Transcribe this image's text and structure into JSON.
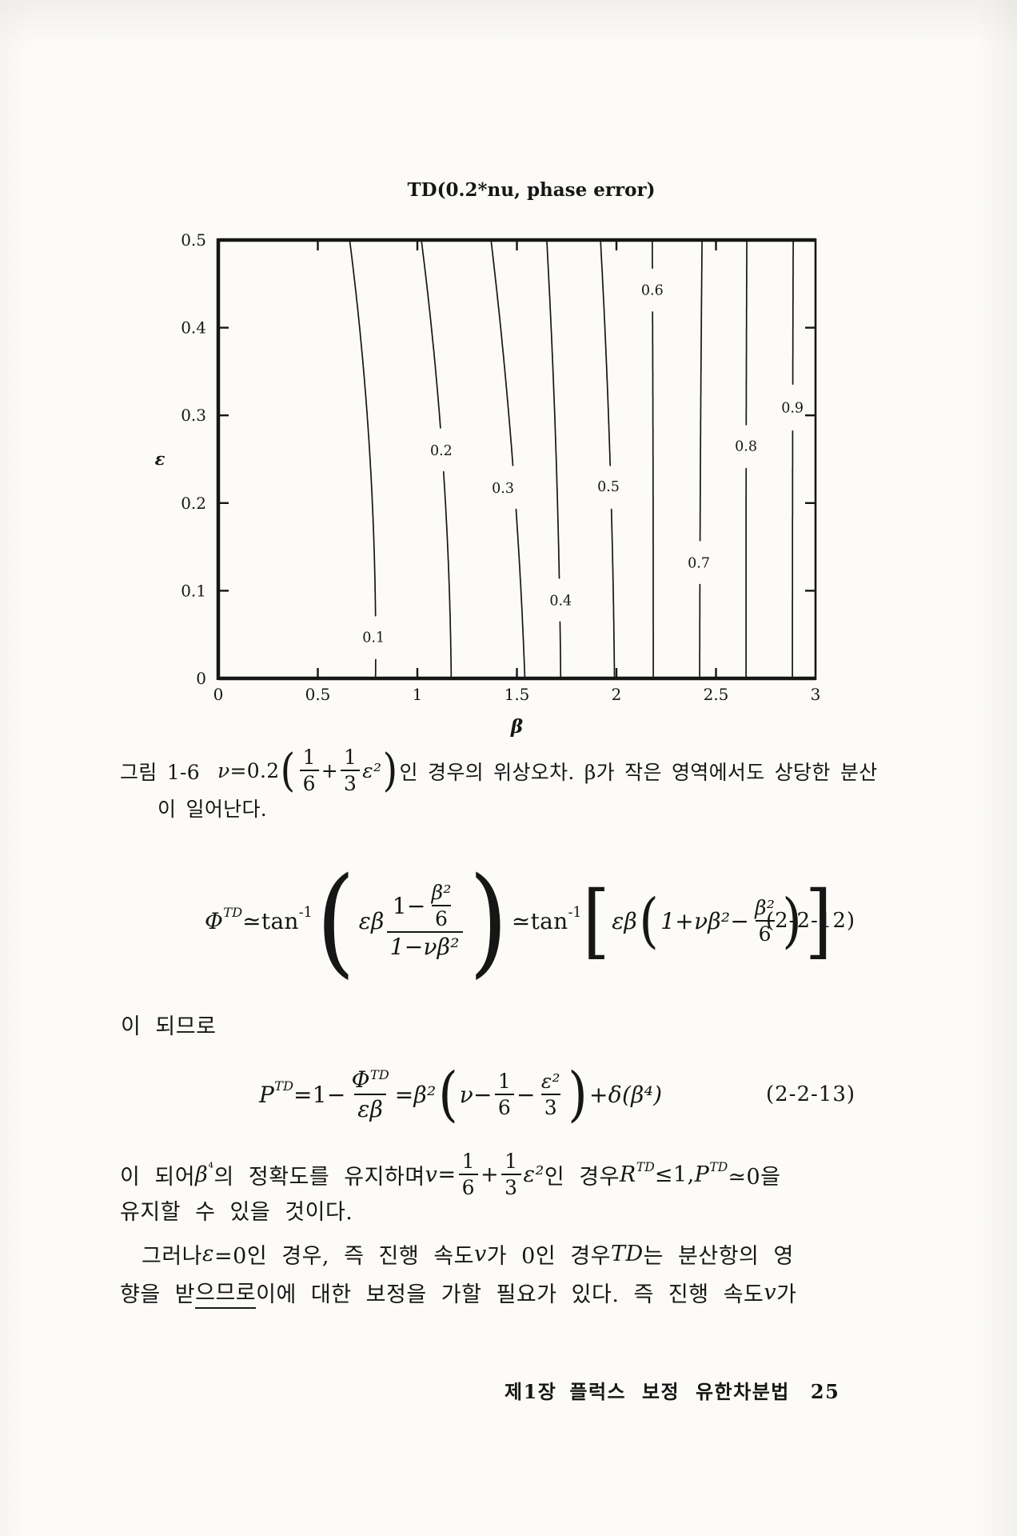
{
  "chart_data": {
    "type": "contour",
    "title": "TD(0.2*nu, phase error)",
    "xlabel": "β",
    "ylabel": "ε",
    "xlim": [
      0,
      3
    ],
    "ylim": [
      0,
      0.5
    ],
    "x_ticks": [
      "0",
      "0.5",
      "1",
      "1.5",
      "2",
      "2.5",
      "3"
    ],
    "y_ticks": [
      "0",
      "0.1",
      "0.2",
      "0.3",
      "0.4",
      "0.5"
    ],
    "grid": false,
    "legend": "none",
    "frame": "box with mirrored inward ticks on all four sides",
    "line_color": "#161616",
    "contours": [
      {
        "level": "0.1",
        "beta_top": 0.66,
        "beta_ctrl": 0.8,
        "beta_bottom": 0.79,
        "label_beta": 0.78,
        "label_eps": 0.047
      },
      {
        "level": "0.2",
        "beta_top": 1.02,
        "beta_ctrl": 1.16,
        "beta_bottom": 1.17,
        "label_beta": 1.12,
        "label_eps": 0.26
      },
      {
        "level": "0.3",
        "beta_top": 1.37,
        "beta_ctrl": 1.5,
        "beta_bottom": 1.54,
        "label_beta": 1.43,
        "label_eps": 0.217
      },
      {
        "level": "0.4",
        "beta_top": 1.65,
        "beta_ctrl": 1.71,
        "beta_bottom": 1.72,
        "label_beta": 1.72,
        "label_eps": 0.089
      },
      {
        "level": "0.5",
        "beta_top": 1.92,
        "beta_ctrl": 1.98,
        "beta_bottom": 1.99,
        "label_beta": 1.96,
        "label_eps": 0.219
      },
      {
        "level": "0.6",
        "beta_top": 2.18,
        "beta_ctrl": 2.185,
        "beta_bottom": 2.185,
        "label_beta": 2.18,
        "label_eps": 0.443
      },
      {
        "level": "0.7",
        "beta_top": 2.43,
        "beta_ctrl": 2.42,
        "beta_bottom": 2.418,
        "label_beta": 2.414,
        "label_eps": 0.132
      },
      {
        "level": "0.8",
        "beta_top": 2.655,
        "beta_ctrl": 2.65,
        "beta_bottom": 2.651,
        "label_beta": 2.651,
        "label_eps": 0.265
      },
      {
        "level": "0.9",
        "beta_top": 2.888,
        "beta_ctrl": 2.884,
        "beta_bottom": 2.884,
        "label_beta": 2.884,
        "label_eps": 0.309
      }
    ]
  },
  "figure_caption": {
    "label": "그림 1-6",
    "nu": "ν",
    "eq": "=0.2",
    "lparen": "(",
    "f1_num": "1",
    "f1_den": "6",
    "plus": "+",
    "f2_num": "1",
    "f2_den": "3",
    "eps2": "ε²",
    "rparen": ")",
    "line1_rest": "인 경우의 위상오차. β가 작은 영역에서도 상당한 분산",
    "line2": "이 일어난다."
  },
  "equations": {
    "eq1": {
      "lhs": "Φ",
      "lhs_sup": "TD",
      "rel1": "≃",
      "fn1": "tan",
      "fn1_sup": "-1",
      "lparen": "(",
      "coef": "εβ",
      "outer_num_pre": "1−",
      "inner_num": "β²",
      "inner_den": "6",
      "outer_den": "1−νβ²",
      "rparen": ")",
      "rel2": "≃",
      "fn2": "tan",
      "fn2_sup": "-1",
      "lbracket": "[",
      "coef2": "εβ",
      "lparen2": "(",
      "inner2_pre": "1+νβ²−",
      "frac2_num": "β²",
      "frac2_den": "6",
      "rparen2": ")",
      "rbracket": "]",
      "number": "(2-2-12)"
    },
    "connector": "이 되므로",
    "eq2": {
      "lhs": "P",
      "lhs_sup": "TD",
      "eq_a": "=",
      "pre": "1−",
      "f1_num": "Φ",
      "f1_num_sup": "TD",
      "f1_den": "εβ",
      "eq_b": "=",
      "coef": "β²",
      "lparen": "(",
      "term1": "ν−",
      "f2_num": "1",
      "f2_den": "6",
      "minus": "−",
      "f3_num": "ε²",
      "f3_den": "3",
      "rparen": ")",
      "tail": "+δ(β⁴)",
      "number": "(2-2-13)"
    }
  },
  "paragraphs": {
    "p1": {
      "line1": {
        "a": "이 되어 ",
        "beta4": "β",
        "beta4_sup": "⁴",
        "b": "의 정확도를 유지하며 ",
        "v": "v",
        "eq": "=",
        "f1_num": "1",
        "f1_den": "6",
        "plus": "+",
        "f2_num": "1",
        "f2_den": "3",
        "eps2": "ε²",
        "c": "인 경우 ",
        "R": "R",
        "R_sup": "TD",
        "d": "≤1, ",
        "P": "P",
        "P_sup": "TD",
        "e": "≃0을"
      },
      "line2": "유지할 수 있을 것이다."
    },
    "p2": {
      "line1": {
        "a": "그러나 ",
        "eps": "ε",
        "b": "=0인 경우, 즉 진행 속도 ",
        "v": "v",
        "c": "가 0인 경우 ",
        "td": "TD",
        "d": "는 분산항의 영"
      },
      "line2": {
        "a": "향을 받",
        "underlined": "으므로",
        "b": " 이에 대한 보정을 가할 필요가 있다. 즉 진행 속도 ",
        "v": "v",
        "c": "가"
      }
    }
  },
  "footer": {
    "chapter_no": "제1장",
    "chapter_title": "플럭스 보정 유한차분법",
    "page_number": "25"
  }
}
